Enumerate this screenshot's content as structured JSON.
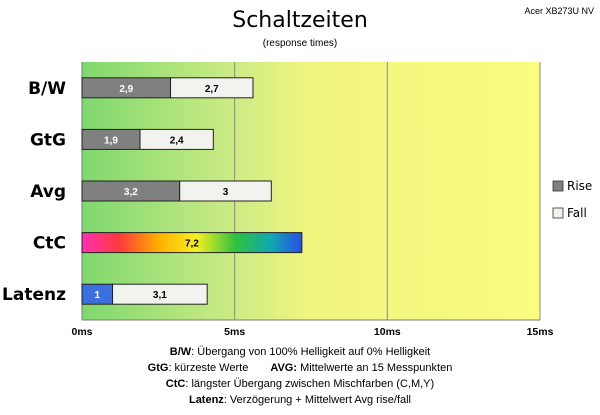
{
  "header": {
    "title": "Schaltzeiten",
    "subtitle": "(response times)",
    "model": "Acer XB273U NV"
  },
  "chart_data": {
    "type": "bar",
    "orientation": "horizontal",
    "stacked": true,
    "categories": [
      "B/W",
      "GtG",
      "Avg",
      "CtC",
      "Latenz"
    ],
    "series": [
      {
        "name": "Rise",
        "values": [
          2.9,
          1.9,
          3.2,
          7.2,
          1
        ]
      },
      {
        "name": "Fall",
        "values": [
          2.7,
          2.4,
          3,
          null,
          3.1
        ]
      }
    ],
    "value_labels": [
      [
        "2,9",
        "2,7"
      ],
      [
        "1,9",
        "2,4"
      ],
      [
        "3,2",
        "3"
      ],
      [
        "7,2",
        ""
      ],
      [
        "1",
        "3,1"
      ]
    ],
    "xlim": [
      0,
      15
    ],
    "xticks": [
      0,
      5,
      10,
      15
    ],
    "xtick_labels": [
      "0ms",
      "5ms",
      "10ms",
      "15ms"
    ],
    "legend": [
      "Rise",
      "Fall"
    ],
    "legend_position": "right",
    "colors": {
      "rise": "#808080",
      "fall": "#f2f2ee",
      "bg_good": "#7ed86e",
      "bg_mid": "#cdeb85",
      "bg_bad": "#fbfc80",
      "latenz_bar": "#3b6fe0"
    }
  },
  "notes": {
    "bw_key": "B/W",
    "bw_text": ":  Übergang von 100% Helligkeit auf 0% Helligkeit",
    "gtg_key": "GtG",
    "gtg_text": ": kürzeste  Werte",
    "avg_key": "AVG:",
    "avg_text": " Mittelwerte  an 15 Messpunkten",
    "ctc_key": "CtC",
    "ctc_text": ": längster Übergang  zwischen Mischfarben (C,M,Y)",
    "latenz_key": "Latenz",
    "latenz_text": ": Verzögerung  + Mittelwert Avg rise/fall"
  }
}
